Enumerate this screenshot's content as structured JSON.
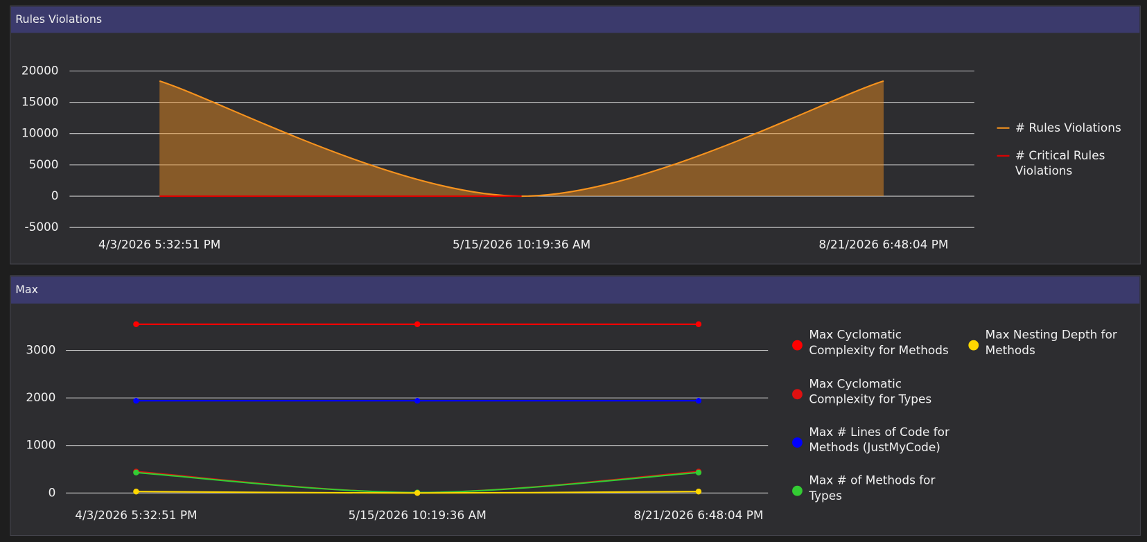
{
  "chart_data": [
    {
      "type": "line",
      "title": "Rules Violations",
      "categories": [
        "4/3/2026 5:32:51 PM",
        "5/15/2026 10:19:36 AM",
        "8/21/2026 6:48:04 PM"
      ],
      "series": [
        {
          "name": "# Rules Violations",
          "color": "#f7931e",
          "area": true,
          "values": [
            18400,
            0,
            18400
          ]
        },
        {
          "name": "# Critical Rules Violations",
          "color": "#e00000",
          "values": [
            0,
            0,
            null
          ]
        }
      ],
      "ylim": [
        -5000,
        25000
      ],
      "yticks": [
        -5000,
        0,
        5000,
        10000,
        15000,
        20000
      ],
      "grid": true,
      "markers": false
    },
    {
      "type": "line",
      "title": "Max",
      "categories": [
        "4/3/2026 5:32:51 PM",
        "5/15/2026 10:19:36 AM",
        "8/21/2026 6:48:04 PM"
      ],
      "series": [
        {
          "name": "Max Cyclomatic Complexity for Methods",
          "color": "#ff0000",
          "values": [
            3550,
            3550,
            3550
          ]
        },
        {
          "name": "Max Cyclomatic Complexity for Types",
          "color": "#e01010",
          "values": [
            450,
            10,
            450
          ]
        },
        {
          "name": "Max # Lines of Code for Methods (JustMyCode)",
          "color": "#0000ff",
          "values": [
            1940,
            1940,
            1940
          ]
        },
        {
          "name": "Max # of Methods for Types",
          "color": "#33cc33",
          "values": [
            430,
            10,
            430
          ]
        },
        {
          "name": "Max Nesting Depth for Methods",
          "color": "#ffd700",
          "values": [
            30,
            0,
            30
          ]
        }
      ],
      "ylim": [
        -250,
        3800
      ],
      "yticks": [
        0,
        1000,
        2000,
        3000
      ],
      "grid": true,
      "markers": true
    }
  ]
}
